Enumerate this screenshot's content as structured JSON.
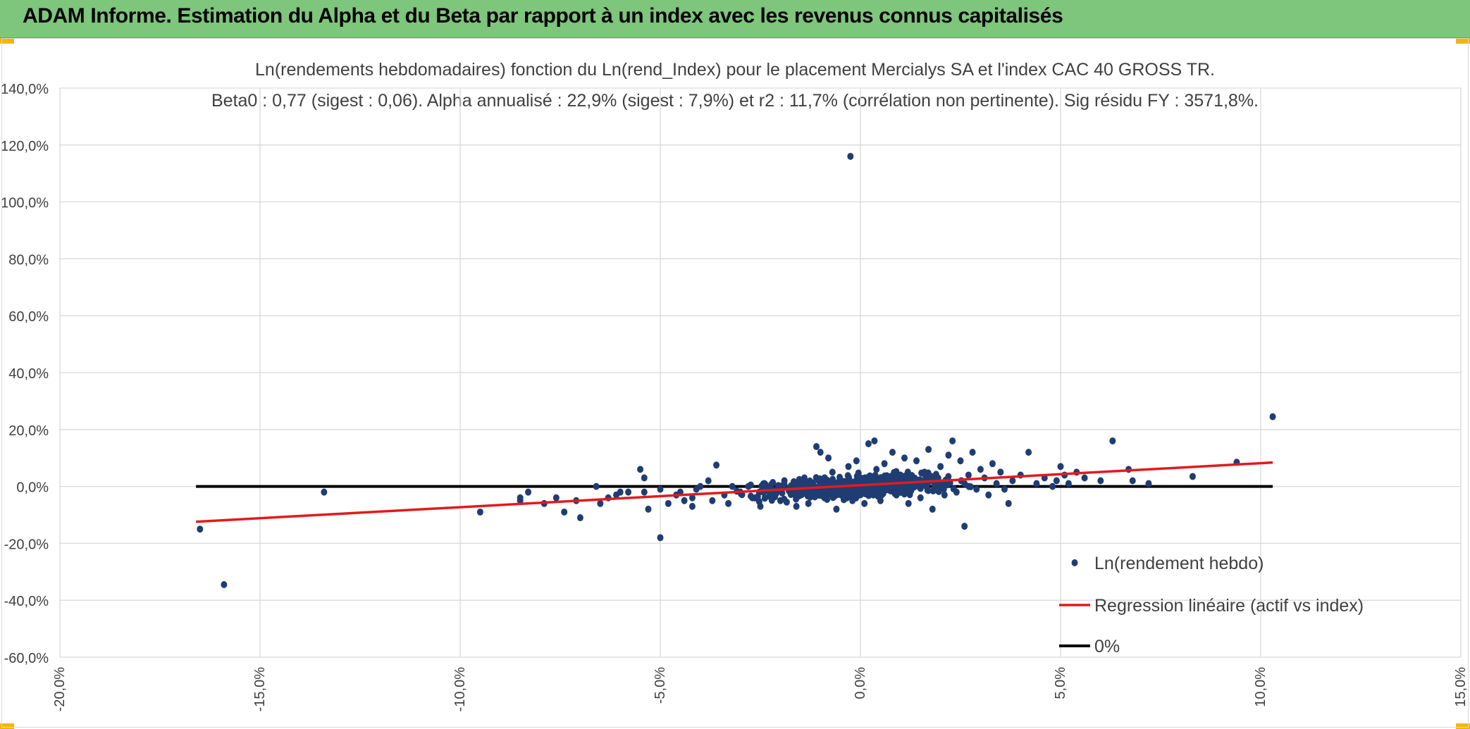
{
  "header": {
    "title": "ADAM Informe. Estimation du Alpha et du Beta par rapport à un index avec les revenus connus capitalisés"
  },
  "colors": {
    "header_bg": "#7dc67b",
    "corner_accent": "#f2b705",
    "points": "#1f3d73",
    "regression": "#e31a1c",
    "zero_line": "#000000",
    "grid": "#d9d9d9"
  },
  "chart_data": {
    "type": "scatter",
    "title": "Ln(rendements hebdomadaires) fonction du Ln(rend_Index) pour le placement Mercialys SA et l'index CAC 40 GROSS TR.",
    "subtitle": "Beta0 : 0,77 (sigest : 0,06). Alpha annualisé : 22,9% (sigest : 7,9%) et r2 : 11,7% (corrélation non pertinente). Sig résidu FY : 3571,8%.",
    "xlabel": "",
    "ylabel": "",
    "xlim": [
      -20,
      15
    ],
    "ylim": [
      -60,
      140
    ],
    "x_ticks": [
      -20,
      -15,
      -10,
      -5,
      0,
      5,
      10,
      15
    ],
    "y_ticks": [
      -60,
      -40,
      -20,
      0,
      20,
      40,
      60,
      80,
      100,
      120,
      140
    ],
    "x_tick_labels": [
      "-20,0%",
      "-15,0%",
      "-10,0%",
      "-5,0%",
      "0,0%",
      "5,0%",
      "10,0%",
      "15,0%"
    ],
    "y_tick_labels": [
      "-60,0%",
      "-40,0%",
      "-20,0%",
      "0,0%",
      "20,0%",
      "40,0%",
      "60,0%",
      "80,0%",
      "100,0%",
      "120,0%",
      "140,0%"
    ],
    "grid": true,
    "legend_position": "bottom-right",
    "series": [
      {
        "name": "Ln(rendement hebdo)",
        "kind": "scatter",
        "points": [
          [
            -16.5,
            -15
          ],
          [
            -15.9,
            -34.5
          ],
          [
            -13.4,
            -2
          ],
          [
            -9.5,
            -9
          ],
          [
            -8.5,
            -5
          ],
          [
            -8.5,
            -4
          ],
          [
            -8.3,
            -2
          ],
          [
            -7.9,
            -6
          ],
          [
            -7.6,
            -4
          ],
          [
            -7.4,
            -9
          ],
          [
            -7.1,
            -5
          ],
          [
            -7.0,
            -11
          ],
          [
            -6.6,
            0
          ],
          [
            -6.5,
            -6
          ],
          [
            -6.3,
            -4
          ],
          [
            -6.1,
            -3
          ],
          [
            -6.0,
            -2
          ],
          [
            -5.8,
            -2
          ],
          [
            -5.5,
            6
          ],
          [
            -5.4,
            3
          ],
          [
            -5.4,
            -2
          ],
          [
            -5.3,
            -8
          ],
          [
            -5.0,
            -18
          ],
          [
            -5.0,
            -1
          ],
          [
            -4.8,
            -6
          ],
          [
            -4.6,
            -3
          ],
          [
            -4.5,
            -2
          ],
          [
            -4.4,
            -5
          ],
          [
            -4.2,
            -7
          ],
          [
            -4.2,
            -4
          ],
          [
            -4.1,
            -1
          ],
          [
            -4.0,
            0
          ],
          [
            -3.8,
            2
          ],
          [
            -3.7,
            -5
          ],
          [
            -3.6,
            7.5
          ],
          [
            -3.4,
            -3
          ],
          [
            -3.3,
            -6
          ],
          [
            -3.2,
            0
          ],
          [
            -3.0,
            -2
          ],
          [
            -2.8,
            0
          ],
          [
            -2.7,
            -4
          ],
          [
            -2.5,
            -7
          ],
          [
            -2.4,
            1
          ],
          [
            -2.2,
            -3
          ],
          [
            -2.0,
            -5
          ],
          [
            -1.9,
            2
          ],
          [
            -1.8,
            -1
          ],
          [
            -1.6,
            -7
          ],
          [
            -1.4,
            3
          ],
          [
            -1.3,
            -6
          ],
          [
            -1.2,
            1
          ],
          [
            -1.1,
            14
          ],
          [
            -1.0,
            12
          ],
          [
            -0.9,
            -4
          ],
          [
            -0.8,
            10
          ],
          [
            -0.7,
            5
          ],
          [
            -0.6,
            -8
          ],
          [
            -0.5,
            2
          ],
          [
            -0.4,
            -3
          ],
          [
            -0.3,
            7
          ],
          [
            -0.25,
            116
          ],
          [
            -0.2,
            -5
          ],
          [
            -0.1,
            9
          ],
          [
            0.0,
            3
          ],
          [
            0.1,
            -6
          ],
          [
            0.2,
            15
          ],
          [
            0.3,
            -2
          ],
          [
            0.35,
            16
          ],
          [
            0.4,
            6
          ],
          [
            0.5,
            -5
          ],
          [
            0.6,
            8
          ],
          [
            0.7,
            -1
          ],
          [
            0.8,
            12
          ],
          [
            0.9,
            -3
          ],
          [
            1.0,
            4
          ],
          [
            1.1,
            10
          ],
          [
            1.2,
            -6
          ],
          [
            1.3,
            2
          ],
          [
            1.4,
            9
          ],
          [
            1.5,
            -4
          ],
          [
            1.6,
            5
          ],
          [
            1.7,
            13
          ],
          [
            1.8,
            -8
          ],
          [
            1.9,
            1
          ],
          [
            2.0,
            7
          ],
          [
            2.1,
            -3
          ],
          [
            2.2,
            11
          ],
          [
            2.3,
            16
          ],
          [
            2.4,
            -2
          ],
          [
            2.5,
            9
          ],
          [
            2.6,
            -14
          ],
          [
            2.7,
            4
          ],
          [
            2.8,
            12
          ],
          [
            2.9,
            -1
          ],
          [
            3.0,
            6
          ],
          [
            3.1,
            3
          ],
          [
            3.2,
            -3
          ],
          [
            3.3,
            8
          ],
          [
            3.4,
            1
          ],
          [
            3.5,
            5
          ],
          [
            3.6,
            -1
          ],
          [
            3.7,
            -6
          ],
          [
            3.8,
            2
          ],
          [
            4.0,
            4
          ],
          [
            4.2,
            12
          ],
          [
            4.4,
            1
          ],
          [
            4.6,
            3
          ],
          [
            4.8,
            0
          ],
          [
            4.9,
            2
          ],
          [
            5.0,
            7
          ],
          [
            5.1,
            4
          ],
          [
            5.2,
            1
          ],
          [
            5.4,
            5
          ],
          [
            5.6,
            3
          ],
          [
            6.0,
            2
          ],
          [
            6.3,
            16
          ],
          [
            6.7,
            6
          ],
          [
            6.8,
            2
          ],
          [
            7.2,
            1
          ],
          [
            8.3,
            3.5
          ],
          [
            9.4,
            8.5
          ],
          [
            10.3,
            24.5
          ]
        ]
      },
      {
        "name": "Regression linéaire (actif vs index)",
        "kind": "line",
        "points": [
          [
            -16.6,
            -12.4
          ],
          [
            10.3,
            8.4
          ]
        ]
      },
      {
        "name": "0%",
        "kind": "line",
        "points": [
          [
            -16.6,
            0
          ],
          [
            10.3,
            0
          ]
        ]
      }
    ]
  }
}
